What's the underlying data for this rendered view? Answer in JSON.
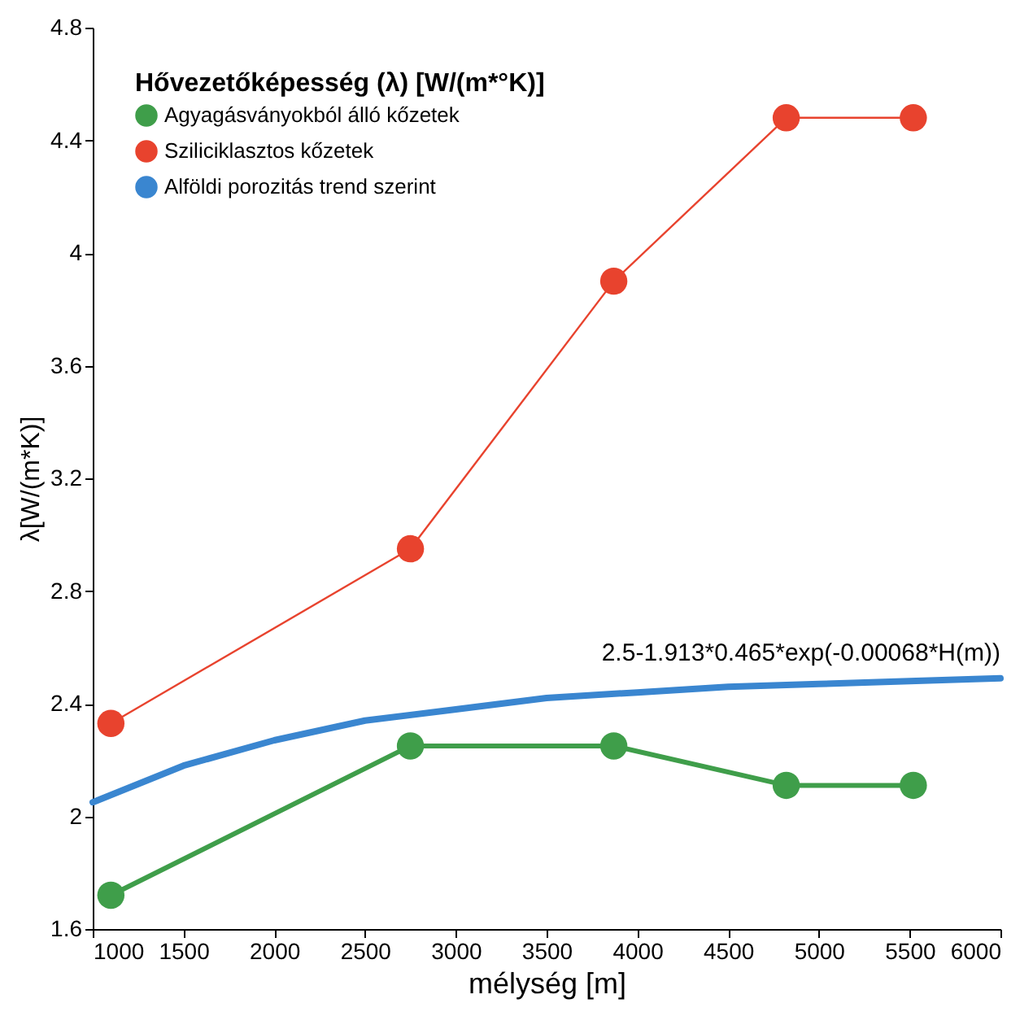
{
  "chart_data": {
    "type": "line",
    "xlabel": "mélység [m]",
    "ylabel": "λ[W/(m*K)]",
    "legend_title": "Hővezetőképesség (λ) [W/(m*°K)]",
    "legend": "top left",
    "marker": "circle",
    "grid": false,
    "xlim": [
      1000,
      6000
    ],
    "xticks": [
      1000,
      1500,
      2000,
      2500,
      3000,
      3500,
      4000,
      4500,
      5000,
      5500,
      6000
    ],
    "ylim": [
      1.6,
      4.8
    ],
    "yticks": [
      1.6,
      2,
      2.4,
      2.8,
      3.2,
      3.6,
      4,
      4.4,
      4.8
    ],
    "series": [
      {
        "name": "Agyagásványokból álló kőzetek",
        "color": "#3f9e4a",
        "x": [
          1100,
          2750,
          3870,
          4820,
          5520
        ],
        "values": [
          1.72,
          2.25,
          2.25,
          2.11,
          2.11
        ]
      },
      {
        "name": "Sziliciklasztos kőzetek",
        "color": "#e8432e",
        "x": [
          1100,
          2750,
          3870,
          4820,
          5520
        ],
        "values": [
          2.33,
          2.95,
          3.9,
          4.48,
          4.48
        ]
      },
      {
        "name": "Alföldi porozitás trend szerint",
        "color": "#3a86d0",
        "marker": "none",
        "x": [
          1000,
          1500,
          2000,
          2500,
          3000,
          3500,
          4000,
          4500,
          5000,
          5500,
          6000
        ],
        "values": [
          2.05,
          2.18,
          2.27,
          2.34,
          2.38,
          2.42,
          2.44,
          2.46,
          2.47,
          2.48,
          2.49
        ]
      }
    ],
    "annotations": [
      "2.5-1.913*0.465*exp(-0.00068*H(m))"
    ]
  }
}
